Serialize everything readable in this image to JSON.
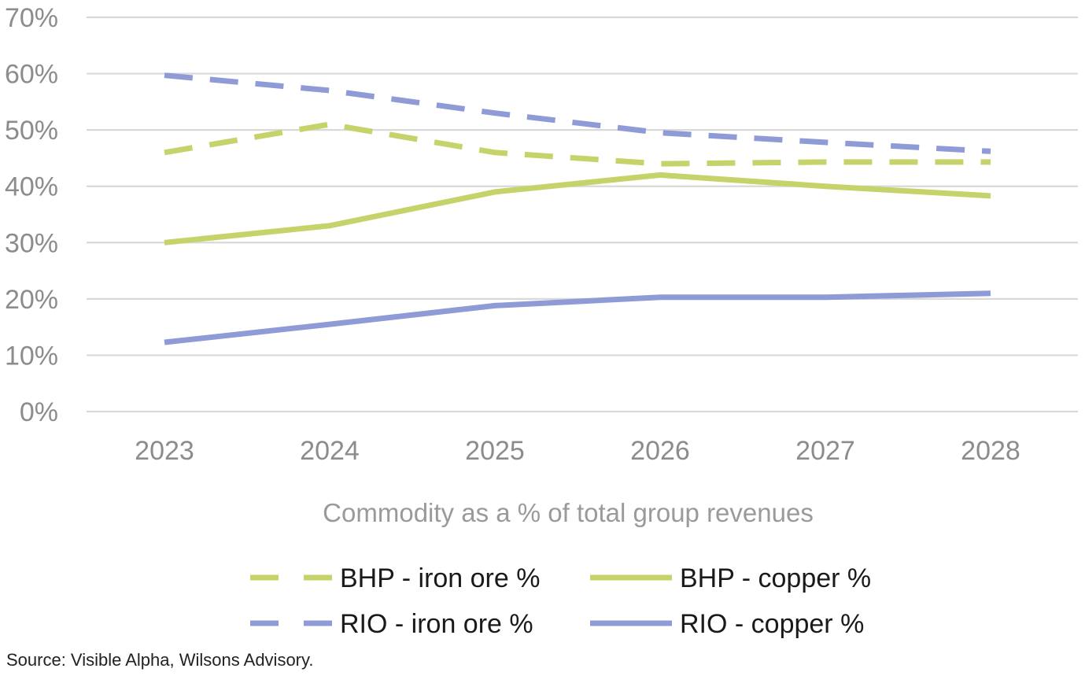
{
  "chart_data": {
    "type": "line",
    "categories": [
      "2023",
      "2024",
      "2025",
      "2026",
      "2027",
      "2028"
    ],
    "series": [
      {
        "name": "BHP - iron ore %",
        "values": [
          46,
          51,
          46,
          44,
          44.3,
          44.3
        ],
        "color": "#c5d36a",
        "dashed": true
      },
      {
        "name": "BHP - copper %",
        "values": [
          30,
          33,
          39,
          42,
          40,
          38.3
        ],
        "color": "#c5d36a",
        "dashed": false
      },
      {
        "name": "RIO - iron ore %",
        "values": [
          59.7,
          57,
          53,
          49.5,
          47.8,
          46.2
        ],
        "color": "#8f9bd6",
        "dashed": true
      },
      {
        "name": "RIO - copper %",
        "values": [
          12.3,
          15.5,
          18.8,
          20.3,
          20.3,
          21
        ],
        "color": "#8f9bd6",
        "dashed": false
      }
    ],
    "xlabel": "Commodity as a % of total group revenues",
    "ylabel": "",
    "ylim": [
      0,
      70
    ],
    "yticks": [
      "0%",
      "10%",
      "20%",
      "30%",
      "40%",
      "50%",
      "60%",
      "70%"
    ],
    "grid": true,
    "legend_position": "bottom"
  },
  "source_note": "Source: Visible Alpha, Wilsons Advisory."
}
